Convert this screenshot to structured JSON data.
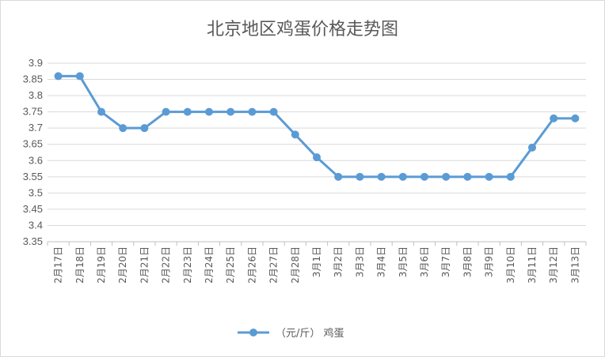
{
  "chart_data": {
    "type": "line",
    "title": "北京地区鸡蛋价格走势图",
    "categories": [
      "2月17日",
      "2月18日",
      "2月19日",
      "2月20日",
      "2月21日",
      "2月22日",
      "2月23日",
      "2月24日",
      "2月25日",
      "2月26日",
      "2月27日",
      "2月28日",
      "3月1日",
      "3月2日",
      "3月3日",
      "3月4日",
      "3月5日",
      "3月6日",
      "3月7日",
      "3月8日",
      "3月9日",
      "3月10日",
      "3月11日",
      "3月12日",
      "3月13日"
    ],
    "series": [
      {
        "name": "（元/斤） 鸡蛋",
        "color": "#5b9bd5",
        "values": [
          3.86,
          3.86,
          3.75,
          3.7,
          3.7,
          3.75,
          3.75,
          3.75,
          3.75,
          3.75,
          3.75,
          3.68,
          3.61,
          3.55,
          3.55,
          3.55,
          3.55,
          3.55,
          3.55,
          3.55,
          3.55,
          3.55,
          3.64,
          3.73,
          3.73
        ]
      }
    ],
    "yticks": [
      "3.35",
      "3.4",
      "3.45",
      "3.5",
      "3.55",
      "3.6",
      "3.65",
      "3.7",
      "3.75",
      "3.8",
      "3.85",
      "3.9"
    ],
    "ylim": [
      3.35,
      3.9
    ],
    "grid": true,
    "legend_position": "bottom"
  }
}
